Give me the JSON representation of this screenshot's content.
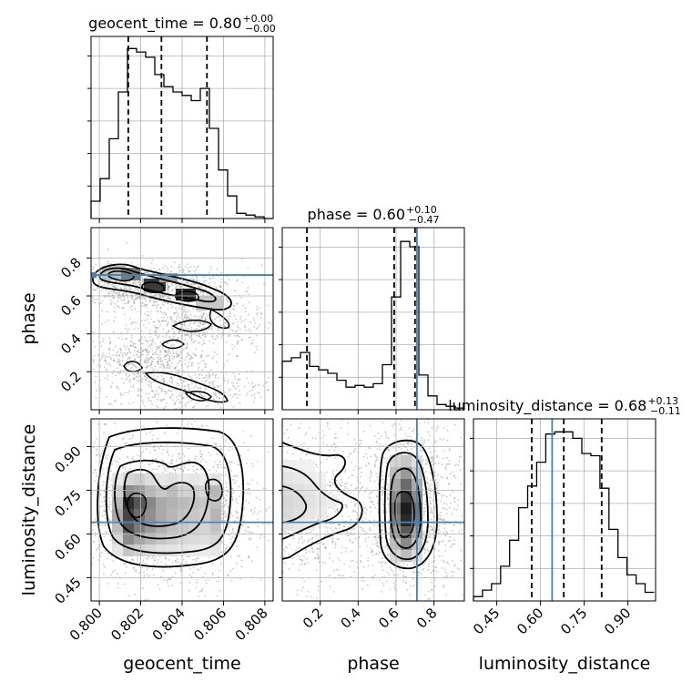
{
  "chart_data": {
    "type": "corner",
    "parameters": [
      "geocent_time",
      "phase",
      "luminosity_distance"
    ],
    "truth": {
      "phase": 0.71,
      "luminosity_distance": 0.64
    },
    "colors": {
      "hist": "#000000",
      "truth": "#4682b4",
      "grid": "#b0b0b0",
      "quantile": "#000000"
    },
    "grid": true,
    "panels": {
      "geocent_time": {
        "title_name": "geocent_time",
        "title_value": "0.80",
        "title_plus": "+0.00",
        "title_minus": "−0.00",
        "xlabel": "geocent_time",
        "xlim": [
          0.7996,
          0.8084
        ],
        "x_ticks": [
          0.8,
          0.802,
          0.804,
          0.806,
          0.808
        ],
        "x_tick_labels": [
          "0.800",
          "0.802",
          "0.804",
          "0.806",
          "0.808"
        ],
        "quantiles": [
          0.8014,
          0.803,
          0.8052
        ],
        "hist_edges": [
          0.7996,
          0.80004,
          0.80048,
          0.80092,
          0.80136,
          0.8018,
          0.80224,
          0.80268,
          0.80312,
          0.80356,
          0.804,
          0.80444,
          0.80488,
          0.80532,
          0.80576,
          0.8062,
          0.80664,
          0.80708,
          0.80752,
          0.80796,
          0.8084
        ],
        "hist_counts": [
          10,
          23,
          46,
          73,
          98,
          96,
          93,
          83,
          76,
          73,
          71,
          68,
          75,
          52,
          28,
          13,
          3,
          2,
          1,
          0
        ],
        "hist_ymax": 105
      },
      "phase": {
        "title_name": "phase",
        "title_value": "0.60",
        "title_plus": "+0.10",
        "title_minus": "−0.47",
        "xlabel": "phase",
        "ylabel": "phase",
        "lim": [
          0.0,
          0.96
        ],
        "ticks": [
          0.2,
          0.4,
          0.6,
          0.8
        ],
        "tick_labels": [
          "0.2",
          "0.4",
          "0.6",
          "0.8"
        ],
        "quantiles": [
          0.13,
          0.59,
          0.7
        ],
        "hist_edges": [
          0.0,
          0.048,
          0.096,
          0.144,
          0.192,
          0.24,
          0.288,
          0.336,
          0.384,
          0.432,
          0.48,
          0.528,
          0.576,
          0.624,
          0.672,
          0.72,
          0.768,
          0.816,
          0.864,
          0.912,
          0.96
        ],
        "hist_counts": [
          28,
          30,
          33,
          25,
          23,
          21,
          17,
          13,
          14,
          13,
          15,
          26,
          65,
          97,
          94,
          20,
          8,
          3,
          2,
          1
        ],
        "hist_ymax": 105
      },
      "luminosity_distance": {
        "title_name": "luminosity_distance",
        "title_value": "0.68",
        "title_plus": "+0.13",
        "title_minus": "−0.11",
        "xlabel": "luminosity_distance",
        "ylabel": "luminosity_distance",
        "lim": [
          0.37,
          0.995
        ],
        "ticks": [
          0.45,
          0.6,
          0.75,
          0.9
        ],
        "tick_labels": [
          "0.45",
          "0.60",
          "0.75",
          "0.90"
        ],
        "quantiles": [
          0.57,
          0.68,
          0.81
        ],
        "hist_edges": [
          0.37,
          0.401,
          0.432,
          0.463,
          0.494,
          0.525,
          0.556,
          0.587,
          0.618,
          0.649,
          0.68,
          0.711,
          0.742,
          0.773,
          0.804,
          0.835,
          0.866,
          0.897,
          0.928,
          0.959,
          0.99
        ],
        "hist_counts": [
          2,
          5,
          8,
          16,
          28,
          43,
          53,
          64,
          77,
          78,
          78,
          75,
          68,
          67,
          52,
          33,
          20,
          12,
          8,
          4
        ],
        "hist_ymax": 84
      }
    }
  }
}
